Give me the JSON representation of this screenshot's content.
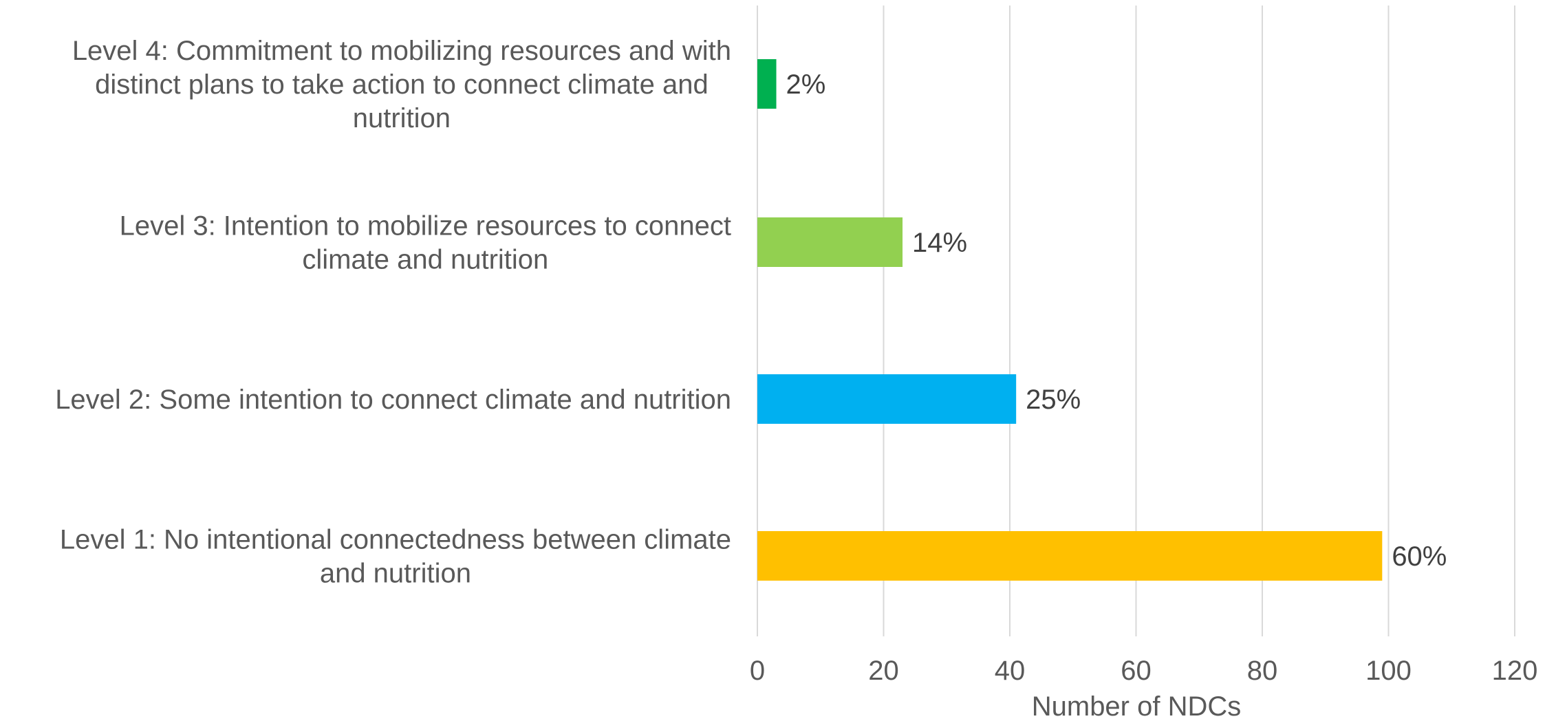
{
  "chart_data": {
    "type": "bar",
    "orientation": "horizontal",
    "categories": [
      "Level 4: Commitment to mobilizing resources and with distinct plans to take action to connect climate and nutrition",
      "Level 3: Intention to mobilize resources to connect climate and nutrition",
      "Level 2: Some intention to connect climate and nutrition",
      "Level 1: No intentional connectedness between climate and nutrition"
    ],
    "category_label_lines": [
      [
        "Level 4: Commitment to mobilizing resources and with",
        "distinct plans to take action to connect climate and",
        "nutrition"
      ],
      [
        "Level 3: Intention to mobilize resources to connect",
        "climate and nutrition"
      ],
      [
        "Level 2: Some intention to connect climate and nutrition"
      ],
      [
        "Level 1: No intentional connectedness between climate",
        "and nutrition"
      ]
    ],
    "values": [
      3,
      23,
      41,
      99
    ],
    "data_labels": [
      "2%",
      "14%",
      "25%",
      "60%"
    ],
    "colors": [
      "#00b050",
      "#92d050",
      "#00b0f0",
      "#ffc000"
    ],
    "xlabel": "Number of NDCs",
    "ylabel": "",
    "title": "",
    "xlim": [
      0,
      120
    ],
    "xticks": [
      0,
      20,
      40,
      60,
      80,
      100,
      120
    ],
    "xtick_labels": [
      "0",
      "20",
      "40",
      "60",
      "80",
      "100",
      "120"
    ],
    "grid": "vertical",
    "legend": "none"
  }
}
